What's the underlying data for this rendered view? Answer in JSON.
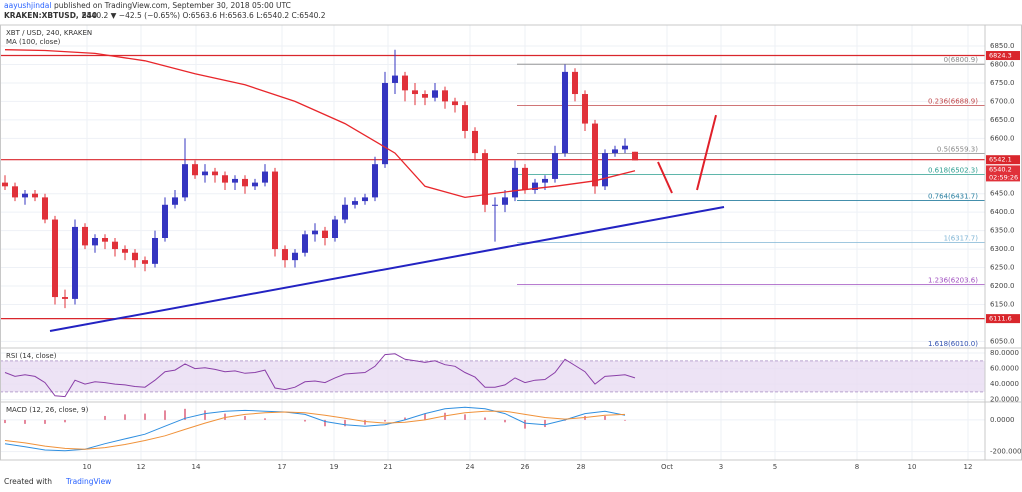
{
  "header": {
    "author": "aayushjindal",
    "published": "published on TradingView.com, September 30, 2018 05:00 UTC",
    "symbol": "KRAKEN:XBTUSD, 240",
    "quote": "6540.2 ▼ −42.5 (−0.65%) O:6563.6 H:6563.6 L:6540.2 C:6540.2"
  },
  "footer": {
    "text": "Created with",
    "brand": "TradingView"
  },
  "chart_data": [
    {
      "type": "candlestick",
      "title": "XBT / USD, 240, KRAKEN",
      "xlim": [
        -0.5,
        98
      ],
      "ylim": [
        6032,
        6907
      ],
      "yticks": [
        {
          "value": 6850,
          "label": "6850.0"
        },
        {
          "value": 6800,
          "label": "6800.0"
        },
        {
          "value": 6750,
          "label": "6750.0"
        },
        {
          "value": 6700,
          "label": "6700.0"
        },
        {
          "value": 6650,
          "label": "6650.0"
        },
        {
          "value": 6600,
          "label": "6600.0"
        },
        {
          "value": 6450,
          "label": "6450.0"
        },
        {
          "value": 6400,
          "label": "6400.0"
        },
        {
          "value": 6350,
          "label": "6350.0"
        },
        {
          "value": 6300,
          "label": "6300.0"
        },
        {
          "value": 6250,
          "label": "6250.0"
        },
        {
          "value": 6200,
          "label": "6200.0"
        },
        {
          "value": 6150,
          "label": "6150.0"
        },
        {
          "value": 6050,
          "label": "6050.0"
        }
      ],
      "xticks": [
        {
          "value": 8.2,
          "label": "10"
        },
        {
          "value": 13.6,
          "label": "12"
        },
        {
          "value": 19.1,
          "label": "14"
        },
        {
          "value": 27.7,
          "label": "17"
        },
        {
          "value": 32.9,
          "label": "19"
        },
        {
          "value": 38.3,
          "label": "21"
        },
        {
          "value": 46.5,
          "label": "24"
        },
        {
          "value": 52,
          "label": "26"
        },
        {
          "value": 57.6,
          "label": "28"
        },
        {
          "value": 66.2,
          "label": "Oct"
        },
        {
          "value": 71.6,
          "label": "3"
        },
        {
          "value": 77,
          "label": "5"
        },
        {
          "value": 85.2,
          "label": "8"
        },
        {
          "value": 90.7,
          "label": "10"
        },
        {
          "value": 96.3,
          "label": "12"
        }
      ],
      "grid": true,
      "series": [
        {
          "name": "XBT / USD",
          "up_color": "#3535c0",
          "down_color": "#e0313a",
          "open": [
            6480,
            6470,
            6440,
            6450,
            6440,
            6380,
            6170,
            6165,
            6360,
            6310,
            6330,
            6320,
            6300,
            6290,
            6270,
            6260,
            6330,
            6420,
            6440,
            6530,
            6500,
            6510,
            6500,
            6480,
            6490,
            6470,
            6480,
            6510,
            6300,
            6270,
            6290,
            6340,
            6350,
            6330,
            6380,
            6420,
            6430,
            6440,
            6530,
            6750,
            6770,
            6730,
            6720,
            6710,
            6730,
            6700,
            6690,
            6620,
            6560,
            6420,
            6420,
            6440,
            6520,
            6460,
            6480,
            6490,
            6560,
            6780,
            6720,
            6640,
            6470,
            6560,
            6570,
            6563.6
          ],
          "high": [
            6500,
            6480,
            6460,
            6460,
            6450,
            6390,
            6190,
            6380,
            6370,
            6340,
            6340,
            6330,
            6310,
            6300,
            6280,
            6350,
            6440,
            6460,
            6600,
            6540,
            6530,
            6520,
            6510,
            6500,
            6500,
            6490,
            6530,
            6520,
            6310,
            6300,
            6350,
            6370,
            6360,
            6390,
            6440,
            6440,
            6450,
            6550,
            6780,
            6840,
            6780,
            6750,
            6730,
            6750,
            6740,
            6710,
            6700,
            6630,
            6570,
            6440,
            6460,
            6540,
            6530,
            6490,
            6500,
            6580,
            6800,
            6790,
            6730,
            6650,
            6570,
            6580,
            6600,
            6563.6
          ],
          "low": [
            6460,
            6430,
            6420,
            6430,
            6370,
            6150,
            6140,
            6150,
            6300,
            6290,
            6300,
            6280,
            6270,
            6250,
            6240,
            6250,
            6320,
            6410,
            6430,
            6490,
            6480,
            6480,
            6460,
            6460,
            6450,
            6460,
            6470,
            6280,
            6250,
            6250,
            6280,
            6320,
            6310,
            6320,
            6370,
            6410,
            6420,
            6430,
            6520,
            6720,
            6700,
            6690,
            6690,
            6700,
            6680,
            6670,
            6600,
            6540,
            6400,
            6320,
            6400,
            6430,
            6450,
            6450,
            6460,
            6480,
            6550,
            6700,
            6620,
            6450,
            6460,
            6550,
            6560,
            6540.2
          ],
          "close": [
            6470,
            6440,
            6450,
            6440,
            6380,
            6170,
            6165,
            6360,
            6310,
            6330,
            6320,
            6300,
            6290,
            6270,
            6260,
            6330,
            6420,
            6440,
            6530,
            6500,
            6510,
            6500,
            6480,
            6490,
            6470,
            6480,
            6510,
            6300,
            6270,
            6290,
            6340,
            6350,
            6330,
            6380,
            6420,
            6430,
            6440,
            6530,
            6750,
            6770,
            6730,
            6720,
            6710,
            6730,
            6700,
            6690,
            6620,
            6560,
            6420,
            6420,
            6440,
            6520,
            6460,
            6480,
            6490,
            6560,
            6780,
            6720,
            6640,
            6470,
            6560,
            6570,
            6580,
            6540.2
          ]
        }
      ],
      "moving_average": {
        "name": "MA (100, close)",
        "color": "#e8262b",
        "x": [
          0,
          4,
          9,
          14,
          19,
          24,
          29,
          34,
          39,
          42,
          46,
          51,
          55,
          59,
          63
        ],
        "values": [
          6840,
          6838,
          6830,
          6810,
          6775,
          6745,
          6700,
          6640,
          6560,
          6470,
          6440,
          6458,
          6470,
          6485,
          6512
        ]
      },
      "levels": [
        {
          "value": 6824.3,
          "color": "#d9262c"
        },
        {
          "value": 6542.1,
          "color": "#d9262c"
        },
        {
          "value": 6111.6,
          "color": "#d9262c"
        }
      ],
      "countdown": "02:59:26",
      "trendline": {
        "color": "#2323c2",
        "x": [
          4.5,
          71.9
        ],
        "values": [
          6078,
          6414
        ]
      },
      "projection": {
        "color": "#e0202a",
        "x": [
          65.3,
          66.7,
          null,
          69.2,
          71.1
        ],
        "values": [
          6536,
          6452,
          null,
          6460,
          6663
        ]
      },
      "fib_start": 51.2,
      "fib": [
        {
          "value": 6800.9,
          "label": "0(6800.9)",
          "color": "#888888"
        },
        {
          "value": 6688.9,
          "label": "0.236(6688.9)",
          "color": "#c0474a"
        },
        {
          "value": 6559.3,
          "label": "0.5(6559.3)",
          "color": "#888888"
        },
        {
          "value": 6502.3,
          "label": "0.618(6502.3)",
          "color": "#2a9d8f"
        },
        {
          "value": 6431.7,
          "label": "0.764(6431.7)",
          "color": "#2a7fa0"
        },
        {
          "value": 6317.7,
          "label": "1(6317.7)",
          "color": "#7fb5d5"
        },
        {
          "value": 6203.6,
          "label": "1.236(6203.6)",
          "color": "#a050c0"
        },
        {
          "value": 6010.0,
          "label": "1.618(6010.0)",
          "color": "#3050b0"
        }
      ]
    },
    {
      "type": "line",
      "title": "RSI (14, close)",
      "ylim": [
        17,
        86.5
      ],
      "yticks": [
        {
          "value": 80,
          "label": "80.0000"
        },
        {
          "value": 60,
          "label": "60.0000"
        },
        {
          "value": 40,
          "label": "40.0000"
        },
        {
          "value": 20,
          "label": "20.0000"
        }
      ],
      "band": [
        30,
        70
      ],
      "band_color": "#e8dcf3",
      "color": "#8a3fa8",
      "values": [
        55,
        50,
        52,
        50,
        42,
        25,
        24,
        45,
        40,
        43,
        42,
        40,
        39,
        37,
        36,
        45,
        56,
        58,
        66,
        60,
        61,
        59,
        56,
        57,
        54,
        55,
        58,
        35,
        33,
        36,
        43,
        44,
        42,
        48,
        53,
        54,
        55,
        63,
        78,
        79,
        72,
        70,
        68,
        70,
        65,
        63,
        55,
        49,
        36,
        36,
        39,
        48,
        42,
        45,
        46,
        55,
        72,
        64,
        56,
        40,
        50,
        51,
        52,
        48
      ]
    },
    {
      "type": "macd",
      "title": "MACD (12, 26, close, 9)",
      "ylim": [
        -253,
        113
      ],
      "yticks": [
        {
          "value": 0,
          "label": "0.0000"
        },
        {
          "value": -200,
          "label": "-200.0000"
        }
      ],
      "x": [
        0,
        2,
        4,
        6,
        8,
        10,
        12,
        14,
        16,
        18,
        20,
        22,
        24,
        26,
        28,
        30,
        32,
        34,
        36,
        38,
        40,
        42,
        44,
        46,
        48,
        50,
        52,
        54,
        56,
        58,
        60,
        62
      ],
      "histogram": {
        "color": "#e5879c",
        "values": [
          -20,
          -25,
          -25,
          -15,
          0,
          25,
          35,
          40,
          60,
          70,
          60,
          40,
          25,
          10,
          0,
          -10,
          -40,
          -40,
          -30,
          -10,
          15,
          40,
          45,
          35,
          15,
          -15,
          -55,
          -45,
          -5,
          25,
          25,
          -5
        ]
      },
      "series": [
        {
          "color": "#2f8fe0",
          "values": [
            -150,
            -170,
            -190,
            -195,
            -185,
            -150,
            -120,
            -90,
            -40,
            10,
            40,
            55,
            60,
            55,
            50,
            35,
            -10,
            -30,
            -40,
            -30,
            0,
            40,
            70,
            80,
            70,
            40,
            -20,
            -30,
            0,
            40,
            55,
            30
          ]
        },
        {
          "color": "#f0923a",
          "values": [
            -130,
            -145,
            -165,
            -180,
            -185,
            -175,
            -155,
            -130,
            -100,
            -60,
            -20,
            15,
            35,
            45,
            50,
            45,
            30,
            10,
            -10,
            -20,
            -15,
            0,
            25,
            45,
            55,
            55,
            35,
            15,
            5,
            15,
            30,
            35
          ]
        }
      ]
    }
  ]
}
